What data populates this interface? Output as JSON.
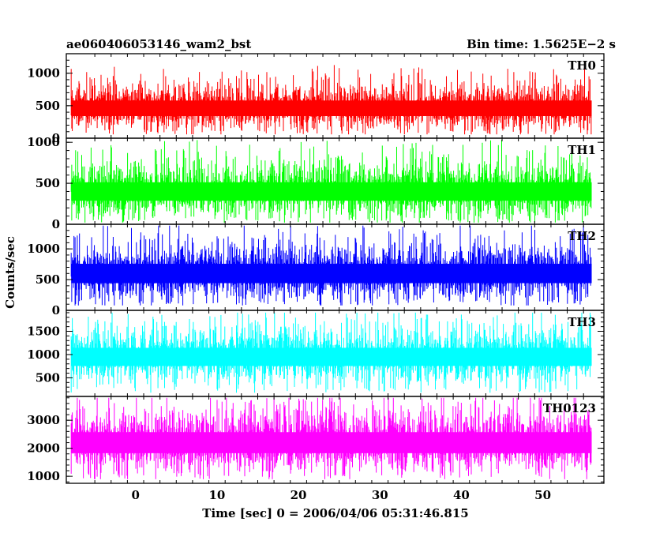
{
  "header": {
    "obs_id": "ae060406053146_wam2_bst",
    "bin_time": "Bin time: 1.5625E−2 s"
  },
  "axes": {
    "xlabel": "Time [sec] 0 = 2006/04/06 05:31:46.815",
    "ylabel": "Counts/sec"
  },
  "chart_data": {
    "type": "line",
    "xlabel": "Time [sec] 0 = 2006/04/06 05:31:46.815",
    "ylabel": "Counts/sec",
    "xlim": [
      -8.5,
      57.5
    ],
    "x_ticks": [
      0,
      10,
      20,
      30,
      40,
      50
    ],
    "x_range_data": [
      -7.9,
      56.0
    ],
    "bin_time": 0.015625,
    "panels": [
      {
        "name": "TH0",
        "color": "#ff0000",
        "ylim": [
          0,
          1300
        ],
        "yticks": [
          0,
          500,
          1000
        ],
        "mean": 460,
        "spread": 160,
        "min": 60,
        "max": 1280
      },
      {
        "name": "TH1",
        "color": "#00ff00",
        "ylim": [
          0,
          1050
        ],
        "yticks": [
          0,
          500,
          1000
        ],
        "mean": 400,
        "spread": 150,
        "min": 20,
        "max": 1030
      },
      {
        "name": "TH2",
        "color": "#0000ff",
        "ylim": [
          0,
          1400
        ],
        "yticks": [
          0,
          500,
          1000
        ],
        "mean": 600,
        "spread": 210,
        "min": 80,
        "max": 1380
      },
      {
        "name": "TH3",
        "color": "#00ffff",
        "ylim": [
          100,
          1950
        ],
        "yticks": [
          500,
          1000,
          1500
        ],
        "mean": 950,
        "spread": 260,
        "min": 180,
        "max": 1900
      },
      {
        "name": "TH0123",
        "color": "#ff00ff",
        "ylim": [
          750,
          3850
        ],
        "yticks": [
          1000,
          2000,
          3000
        ],
        "mean": 2200,
        "spread": 500,
        "min": 900,
        "max": 3800
      }
    ]
  }
}
